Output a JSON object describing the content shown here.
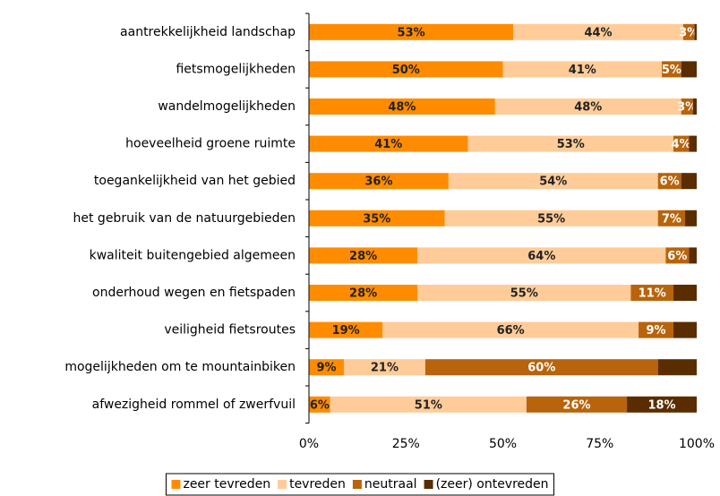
{
  "chart_data": {
    "type": "stacked-barh",
    "categories": [
      "aantrekkelijkheid landschap",
      "fietsmogelijkheden",
      "wandelmogelijkheden",
      "hoeveelheid groene ruimte",
      "toegankelijkheid van het gebied",
      "het gebruik van de natuurgebieden",
      "kwaliteit buitengebied algemeen",
      "onderhoud wegen en fietspaden",
      "veiligheid fietsroutes",
      "mogelijkheden om te mountainbiken",
      "afwezigheid rommel of zwerfvuil"
    ],
    "series": [
      {
        "name": "zeer tevreden",
        "color": "#ff8c00",
        "label_color": "#222222",
        "values": [
          52.7,
          50,
          48,
          41,
          36,
          35,
          28,
          28,
          19,
          9,
          5.5
        ],
        "value_labels": [
          "53%",
          "50%",
          "48%",
          "41%",
          "36%",
          "35%",
          "28%",
          "28%",
          "19%",
          "9%",
          "6%"
        ]
      },
      {
        "name": "tevreden",
        "color": "#ffcc99",
        "label_color": "#222222",
        "values": [
          43.8,
          41,
          48,
          53,
          54,
          55,
          64,
          55,
          66,
          21,
          50.6
        ],
        "value_labels": [
          "44%",
          "41%",
          "48%",
          "53%",
          "54%",
          "55%",
          "64%",
          "55%",
          "66%",
          "21%",
          "51%"
        ]
      },
      {
        "name": "neutraal",
        "color": "#b8640c",
        "label_color": "#ffffff",
        "values": [
          2.9,
          5,
          3,
          4,
          6,
          7,
          6,
          11,
          9,
          60,
          25.9
        ],
        "value_labels": [
          "3%",
          "5%",
          "3%",
          "4%",
          "6%",
          "7%",
          "6%",
          "11%",
          "9%",
          "60%",
          "26%"
        ]
      },
      {
        "name": "(zeer) ontevreden",
        "color": "#5a2d00",
        "label_color": "#ffffff",
        "values": [
          0.6,
          4,
          1,
          2,
          4,
          3,
          2,
          6,
          6,
          10,
          18
        ],
        "value_labels": [
          null,
          null,
          null,
          null,
          null,
          null,
          null,
          null,
          null,
          null,
          "18%"
        ]
      }
    ],
    "xlim": [
      0,
      100
    ],
    "xticks": [
      {
        "value": 0,
        "label": "0%"
      },
      {
        "value": 25,
        "label": "25%"
      },
      {
        "value": 50,
        "label": "50%"
      },
      {
        "value": 75,
        "label": "75%"
      },
      {
        "value": 100,
        "label": "100%"
      }
    ],
    "legend": "bottom"
  }
}
